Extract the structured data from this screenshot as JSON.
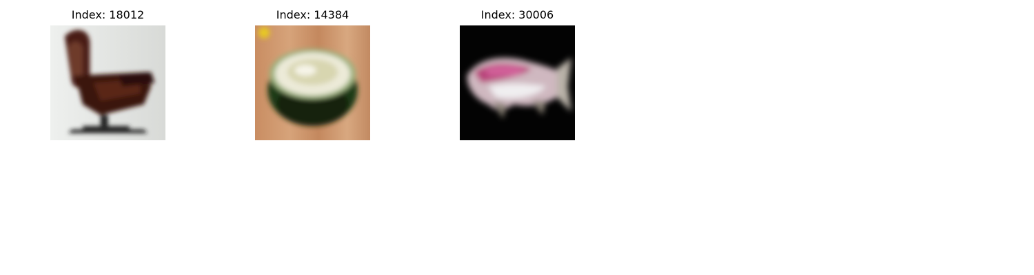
{
  "figure": {
    "panels": [
      {
        "title": "Index: 18012",
        "depicts": "chair",
        "background": "#e4e6e4"
      },
      {
        "title": "Index: 14384",
        "depicts": "fruit-half",
        "background": "#c8946a"
      },
      {
        "title": "Index: 30006",
        "depicts": "fish",
        "background": "#030303"
      }
    ]
  }
}
